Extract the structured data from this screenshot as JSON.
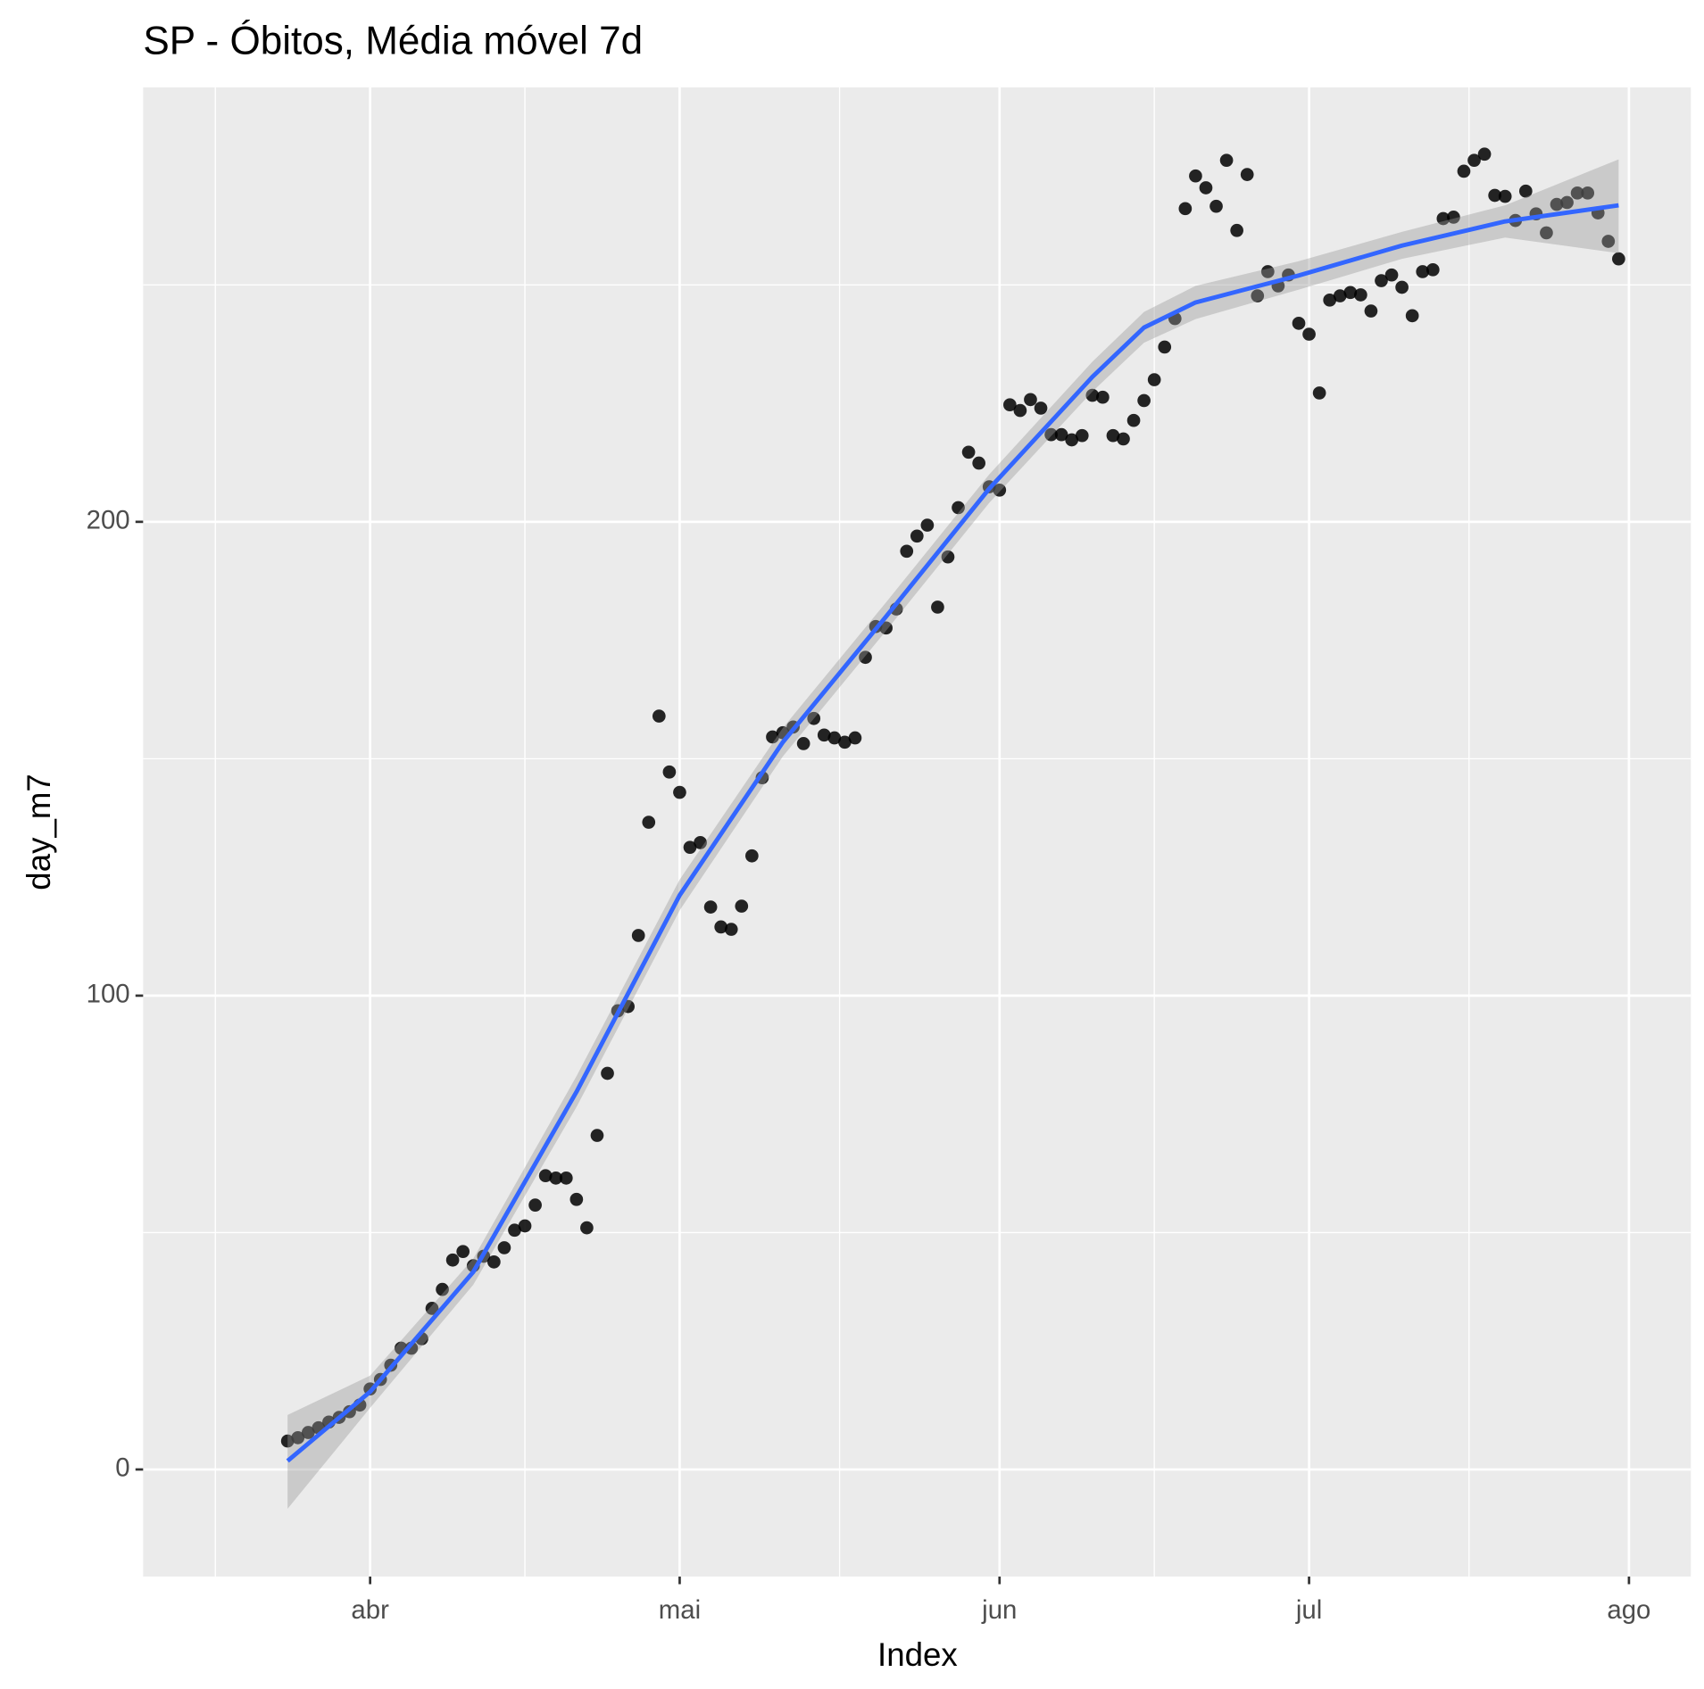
{
  "chart_data": {
    "type": "scatter",
    "title": "SP - Óbitos, Média móvel 7d",
    "x_label": "Index",
    "y_label": "day_m7",
    "x": [
      -8,
      -7,
      -6,
      -5,
      -4,
      -3,
      -2,
      -1,
      0,
      1,
      2,
      3,
      4,
      5,
      6,
      7,
      8,
      9,
      10,
      11,
      12,
      13,
      14,
      15,
      16,
      17,
      18,
      19,
      20,
      21,
      22,
      23,
      24,
      25,
      26,
      27,
      28,
      29,
      30,
      31,
      32,
      33,
      34,
      35,
      36,
      37,
      38,
      39,
      40,
      41,
      42,
      43,
      44,
      45,
      46,
      47,
      48,
      49,
      50,
      51,
      52,
      53,
      54,
      55,
      56,
      57,
      58,
      59,
      60,
      61,
      62,
      63,
      64,
      65,
      66,
      67,
      68,
      69,
      70,
      71,
      72,
      73,
      74,
      75,
      76,
      77,
      78,
      79,
      80,
      81,
      82,
      83,
      84,
      85,
      86,
      87,
      88,
      89,
      90,
      91,
      92,
      93,
      94,
      95,
      96,
      97,
      98,
      99,
      100,
      101,
      102,
      103,
      104,
      105,
      106,
      107,
      108,
      109,
      110,
      111,
      112,
      113,
      114,
      115,
      116,
      117,
      118,
      119,
      120,
      121
    ],
    "values": [
      6,
      6.7,
      7.8,
      8.8,
      10,
      11,
      12.2,
      13.6,
      17,
      19,
      22,
      25.6,
      25.6,
      27.6,
      34,
      38,
      44.2,
      46,
      43,
      45,
      43.8,
      46.8,
      50.5,
      51.4,
      55.8,
      62,
      61.5,
      61.5,
      57,
      51,
      70.5,
      83.6,
      96.8,
      97.7,
      112.7,
      136.6,
      159,
      147.2,
      142.9,
      131.3,
      132.3,
      118.7,
      114.5,
      114,
      118.9,
      129.5,
      146,
      154.6,
      155.5,
      156.7,
      153.2,
      158.5,
      155,
      154.4,
      153.5,
      154.4,
      171.4,
      177.9,
      177.6,
      181.6,
      193.8,
      197,
      199.3,
      182,
      192.6,
      203,
      214.7,
      212.4,
      207.4,
      206.7,
      224.7,
      223.5,
      225.8,
      224,
      218.4,
      218.4,
      217.3,
      218.2,
      226.7,
      226.3,
      218.2,
      217.5,
      221.4,
      225.6,
      230,
      236.9,
      242.9,
      266.1,
      273,
      270.5,
      266.6,
      276.3,
      261.5,
      273.3,
      247.7,
      252.8,
      249.8,
      252.1,
      241.9,
      239.6,
      227.2,
      246.8,
      247.7,
      248.4,
      247.9,
      244.5,
      250.9,
      252.1,
      249.5,
      243.5,
      252.8,
      253.2,
      264,
      264.3,
      274,
      276.3,
      277.6,
      268.9,
      268.7,
      263.6,
      269.8,
      265,
      261,
      267,
      267.4,
      269.4,
      269.4,
      265.2,
      259.2,
      255.5
    ],
    "color": "#000000",
    "smooth": {
      "color": "#3366ff",
      "x": [
        -8,
        0,
        10,
        20,
        30,
        40,
        50,
        60,
        70,
        75,
        80,
        90,
        100,
        110,
        121
      ],
      "values": [
        1.8,
        16.4,
        41.7,
        79.7,
        121.2,
        153.5,
        180,
        207,
        230.6,
        241,
        246.3,
        252,
        258.3,
        263.4,
        266.8
      ],
      "lower": [
        -8.3,
        13,
        39,
        76.5,
        118,
        150.5,
        177,
        204,
        227.5,
        237.8,
        242.8,
        249,
        255.5,
        260,
        256.7
      ],
      "upper": [
        11.5,
        19.8,
        44.5,
        83,
        124.5,
        156.5,
        183,
        210,
        233.8,
        244.3,
        249.8,
        255,
        261.2,
        266.8,
        276.5
      ]
    },
    "xlim": [
      -22,
      128
    ],
    "xticks": [
      {
        "value": 0,
        "label": "abr"
      },
      {
        "value": 30,
        "label": "mai"
      },
      {
        "value": 61,
        "label": "jun"
      },
      {
        "value": 91,
        "label": "jul"
      },
      {
        "value": 122,
        "label": "ago"
      }
    ],
    "ylim": [
      -22.6,
      291.7
    ],
    "yticks": [
      0,
      100,
      200
    ],
    "grid": true
  }
}
